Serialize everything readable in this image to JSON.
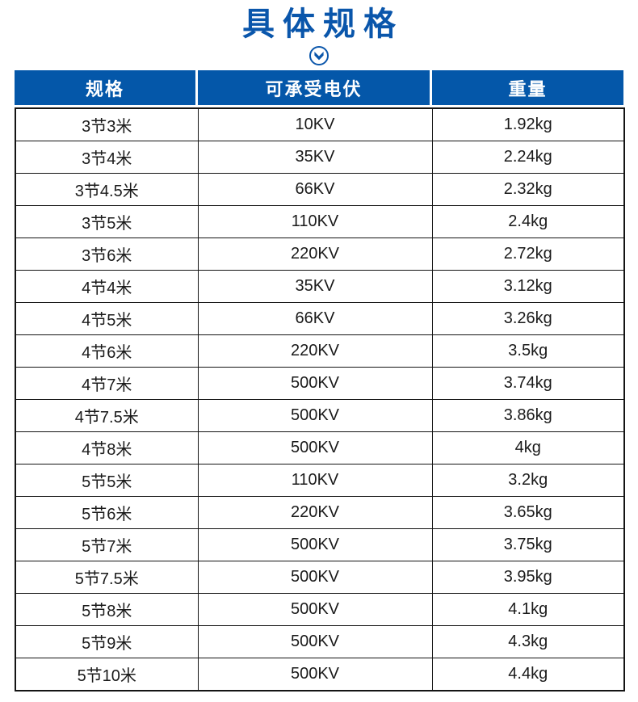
{
  "page": {
    "title": "具体规格"
  },
  "icons": {
    "chevron": "circle-double-down-chevron"
  },
  "colors": {
    "title_blue": "#0a56ab",
    "header_bg": "#0457a9",
    "header_text": "#ffffff",
    "body_text": "#1a1a1a",
    "border": "#141414"
  },
  "table": {
    "columns": [
      "规格",
      "可承受电伏",
      "重量"
    ],
    "column_keys": [
      "spec",
      "voltage",
      "weight"
    ],
    "rows": [
      [
        "3节3米",
        "10KV",
        "1.92kg"
      ],
      [
        "3节4米",
        "35KV",
        "2.24kg"
      ],
      [
        "3节4.5米",
        "66KV",
        "2.32kg"
      ],
      [
        "3节5米",
        "110KV",
        "2.4kg"
      ],
      [
        "3节6米",
        "220KV",
        "2.72kg"
      ],
      [
        "4节4米",
        "35KV",
        "3.12kg"
      ],
      [
        "4节5米",
        "66KV",
        "3.26kg"
      ],
      [
        "4节6米",
        "220KV",
        "3.5kg"
      ],
      [
        "4节7米",
        "500KV",
        "3.74kg"
      ],
      [
        "4节7.5米",
        "500KV",
        "3.86kg"
      ],
      [
        "4节8米",
        "500KV",
        "4kg"
      ],
      [
        "5节5米",
        "110KV",
        "3.2kg"
      ],
      [
        "5节6米",
        "220KV",
        "3.65kg"
      ],
      [
        "5节7米",
        "500KV",
        "3.75kg"
      ],
      [
        "5节7.5米",
        "500KV",
        "3.95kg"
      ],
      [
        "5节8米",
        "500KV",
        "4.1kg"
      ],
      [
        "5节9米",
        "500KV",
        "4.3kg"
      ],
      [
        "5节10米",
        "500KV",
        "4.4kg"
      ]
    ]
  }
}
